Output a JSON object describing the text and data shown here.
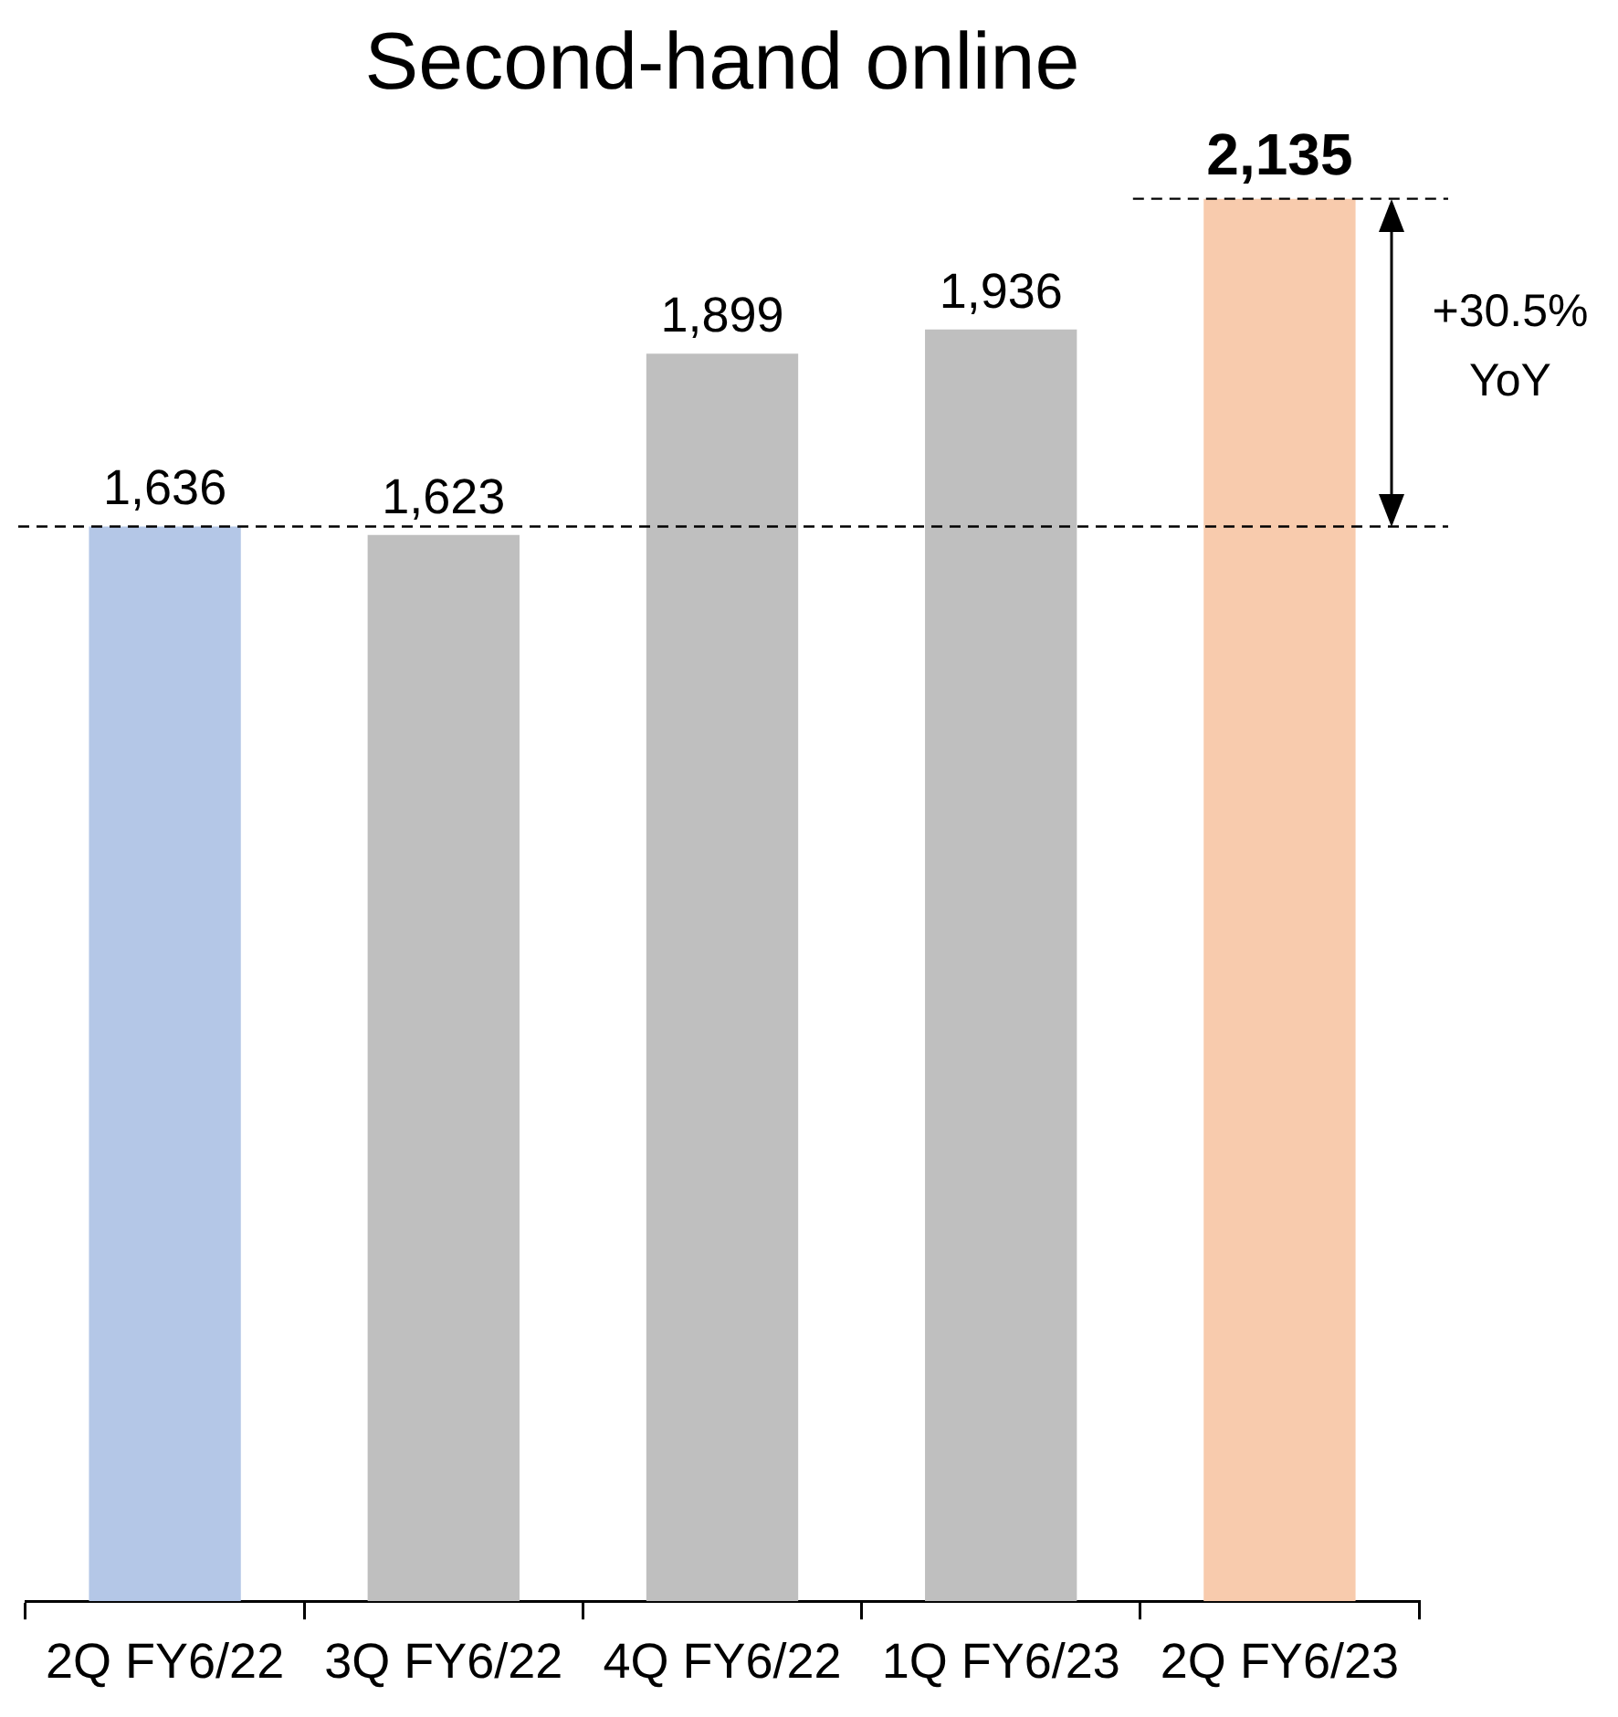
{
  "chart_data": {
    "type": "bar",
    "title": "Second-hand online",
    "categories": [
      "2Q FY6/22",
      "3Q FY6/22",
      "4Q FY6/22",
      "1Q FY6/23",
      "2Q FY6/23"
    ],
    "values": [
      1636,
      1623,
      1899,
      1936,
      2135
    ],
    "value_labels": [
      "1,636",
      "1,623",
      "1,899",
      "1,936",
      "2,135"
    ],
    "colors": [
      "#b4c7e7",
      "#bfbfbf",
      "#bfbfbf",
      "#bfbfbf",
      "#f8cbad"
    ],
    "tick_labels": "x",
    "grid": false,
    "ref_lines": [
      {
        "axis": "y",
        "value": 1636,
        "color": "#000000",
        "line_style": "dashed"
      },
      {
        "axis": "y",
        "value": 2135,
        "color": "#000000",
        "line_style": "dashed"
      }
    ],
    "annotations": [
      "+30.5%\nYoY"
    ]
  }
}
